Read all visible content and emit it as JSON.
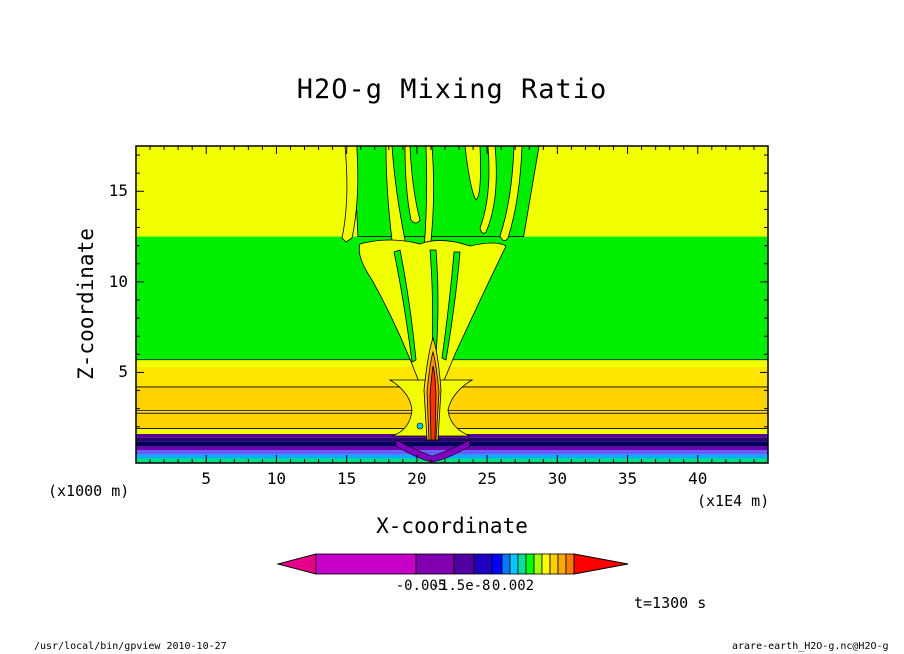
{
  "chart_data": {
    "type": "heatmap",
    "title": "H2O-g Mixing Ratio",
    "xlabel": "X-coordinate",
    "ylabel": "Z-coordinate",
    "x_units_left": "(x1000 m)",
    "x_units_right": "(x1E4 m)",
    "x_ticks": [
      "5",
      "10",
      "15",
      "20",
      "25",
      "30",
      "35",
      "40"
    ],
    "y_ticks": [
      "5",
      "10",
      "15"
    ],
    "xlim": [
      0,
      45
    ],
    "ylim": [
      0,
      17.5
    ],
    "time_label": "t=1300 s",
    "colorbar": {
      "colors": [
        "#e8008a",
        "#c800c8",
        "#8000b0",
        "#5000a0",
        "#2000c0",
        "#0000ff",
        "#0078ff",
        "#00c8ff",
        "#00e0a0",
        "#00ff00",
        "#a0ff00",
        "#ffff00",
        "#ffd000",
        "#ffaa00",
        "#ff7a00",
        "#ff0000"
      ],
      "labels": [
        "-0.005",
        "-1.5e-8",
        "0.002"
      ]
    }
  },
  "footer": {
    "left": "/usr/local/bin/gpview  2010-10-27",
    "right": "arare-earth_H2O-g.nc@H2O-g"
  }
}
